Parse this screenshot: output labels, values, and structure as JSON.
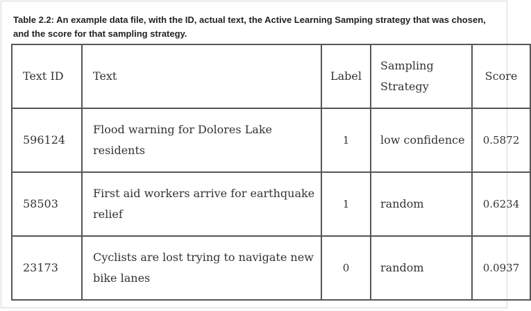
{
  "caption": "Table 2.2: An example data file, with the ID, actual text, the Active Learning Samping strategy that was chosen, and the score for that sampling strategy.",
  "table": {
    "headers": {
      "id": "Text ID",
      "text": "Text",
      "label": "Label",
      "strategy": "Sampling Strategy",
      "score": "Score"
    },
    "rows": [
      {
        "id": "596124",
        "text": "Flood warning for Dolores Lake residents",
        "label": "1",
        "strategy": "low confidence",
        "score": "0.5872"
      },
      {
        "id": "58503",
        "text": "First aid workers arrive for earthquake relief",
        "label": "1",
        "strategy": "random",
        "score": "0.6234"
      },
      {
        "id": "23173",
        "text": "Cyclists are lost trying to navigate new bike lanes",
        "label": "0",
        "strategy": "random",
        "score": "0.0937"
      }
    ]
  }
}
